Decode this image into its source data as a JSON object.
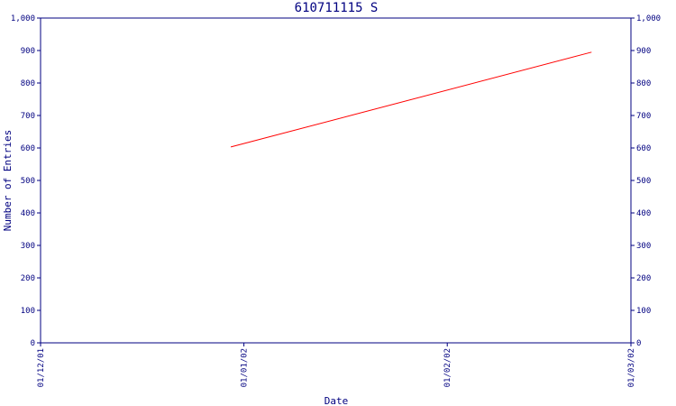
{
  "chart_data": {
    "type": "line",
    "title": "610711115 S",
    "xlabel": "Date",
    "ylabel": "Number of Entries",
    "x_ticks": [
      "01/12/01",
      "01/01/02",
      "01/02/02",
      "01/03/02"
    ],
    "x_tick_dates": [
      "2001-12-01",
      "2002-01-01",
      "2002-02-01",
      "2002-03-01"
    ],
    "y_ticks": [
      "0",
      "100",
      "200",
      "300",
      "400",
      "500",
      "600",
      "700",
      "800",
      "900",
      "1,000"
    ],
    "ylim": [
      0,
      1000
    ],
    "xlim": [
      "2001-12-01",
      "2002-03-01"
    ],
    "grid": false,
    "series": [
      {
        "color": "#ff0000",
        "points": [
          {
            "x": "2001-12-30",
            "y": 603
          },
          {
            "x": "2002-02-23",
            "y": 895
          }
        ]
      }
    ],
    "axis_color": "#000080"
  }
}
